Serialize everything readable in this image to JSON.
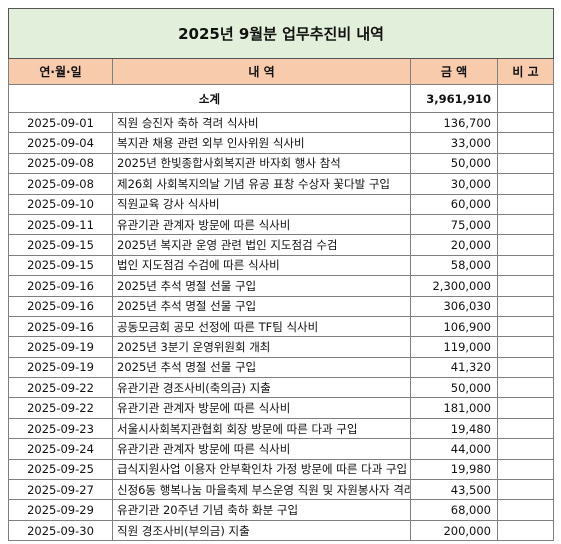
{
  "title": "2025년 9월분 업무추진비 내역",
  "headers": [
    "연·월·일",
    "내 역",
    "금 액",
    "비 고"
  ],
  "subtotal": {
    "label": "소계",
    "amount": "3,961,910"
  },
  "rows": [
    [
      "2025-09-01",
      "직원 승진자 축하 격려 식사비",
      "136,700"
    ],
    [
      "2025-09-04",
      "복지관 채용 관련 외부 인사위원 식사비",
      "33,000"
    ],
    [
      "2025-09-08",
      "2025년 한빛종합사회복지관 바자회 행사 참석",
      "50,000"
    ],
    [
      "2025-09-08",
      "제26회 사회복지의날 기념 유공 표창 수상자 꽃다발 구입",
      "30,000"
    ],
    [
      "2025-09-10",
      "직원교육 강사 식사비",
      "60,000"
    ],
    [
      "2025-09-11",
      "유관기관 관계자 방문에 따른 식사비",
      "75,000"
    ],
    [
      "2025-09-15",
      "2025년 복지관 운영 관련 법인 지도점검 수검",
      "20,000"
    ],
    [
      "2025-09-15",
      "법인 지도점검 수검에 따른 식사비",
      "58,000"
    ],
    [
      "2025-09-16",
      "2025년 추석 명절 선물 구입",
      "2,300,000"
    ],
    [
      "2025-09-16",
      "2025년 추석 명절 선물 구입",
      "306,030"
    ],
    [
      "2025-09-16",
      "공동모금회 공모 선정에 따른 TF팀 식사비",
      "106,900"
    ],
    [
      "2025-09-19",
      "2025년 3분기 운영위원회 개최",
      "119,000"
    ],
    [
      "2025-09-19",
      "2025년 추석 명절 선물 구입",
      "41,320"
    ],
    [
      "2025-09-22",
      "유관기관 경조사비(축의금) 지출",
      "50,000"
    ],
    [
      "2025-09-22",
      "유관기관 관계자 방문에 따른 식사비",
      "181,000"
    ],
    [
      "2025-09-23",
      "서울시사회복지관협회 회장 방문에 따른 다과 구입",
      "19,480"
    ],
    [
      "2025-09-24",
      "유관기관 관계자 방문에 따른 식사비",
      "44,000"
    ],
    [
      "2025-09-25",
      "급식지원사업 이용자 안부확인차 가정 방문에 따른 다과 구입",
      "19,980"
    ],
    [
      "2025-09-27",
      "신정6동 행복나눔 마을축제 부스운영 직원 및 자원봉사자 격려",
      "43,500"
    ],
    [
      "2025-09-29",
      "유관기관 20주년 기념 축하 화분 구입",
      "68,000"
    ],
    [
      "2025-09-30",
      "직원 경조사비(부의금) 지출",
      "200,000"
    ]
  ]
}
